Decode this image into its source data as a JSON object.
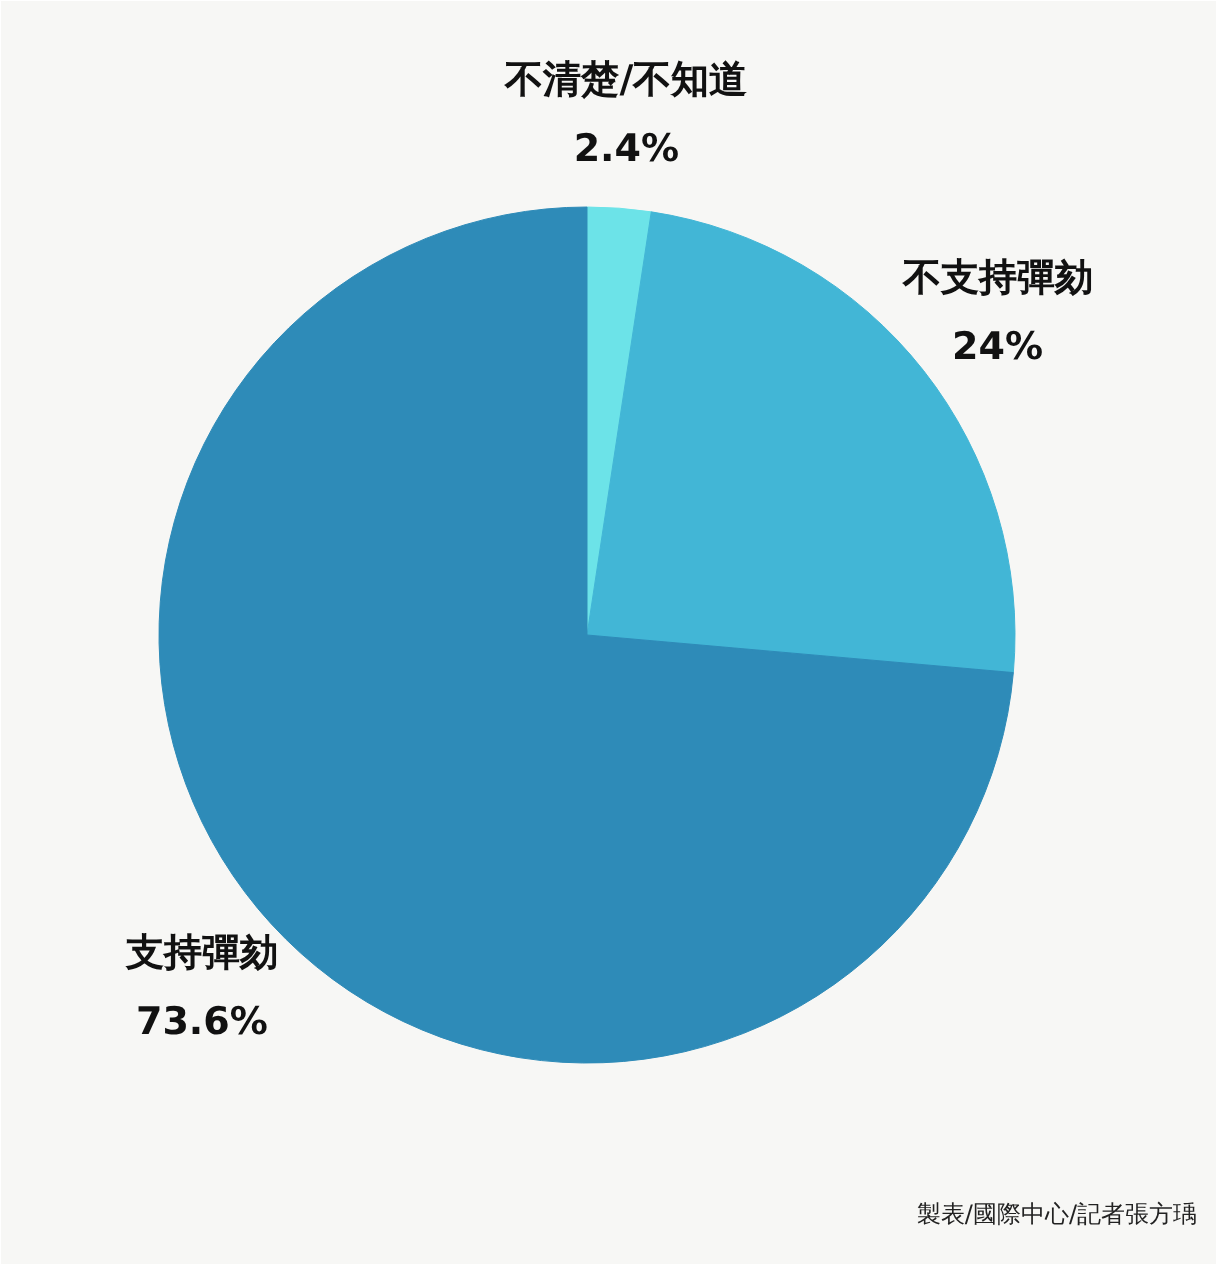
{
  "chart_data": {
    "type": "pie",
    "categories": [
      "不清楚/不知道",
      "不支持彈劾",
      "支持彈劾"
    ],
    "values": [
      2.4,
      24,
      73.6
    ],
    "colors": [
      "#6ce3e8",
      "#42b6d6",
      "#2e8bb8"
    ],
    "value_labels": [
      "2.4%",
      "24%",
      "73.6%"
    ],
    "annotations": [
      "製表/國際中心/記者張方瑀"
    ]
  }
}
